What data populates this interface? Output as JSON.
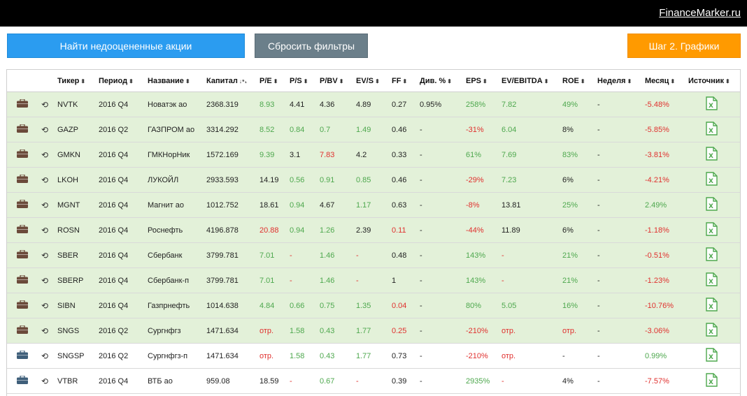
{
  "header": {
    "brand": "FinanceMarker.ru"
  },
  "buttons": {
    "find": "Найти недооцененные акции",
    "reset": "Сбросить фильтры",
    "step": "Шаг 2. Графики"
  },
  "colors": {
    "positive": "#4ea84e",
    "negative": "#e0302e",
    "highlight_row": "#e3f1d9",
    "accent_blue": "#2b9cf0",
    "accent_orange": "#ff9a00"
  },
  "table": {
    "columns": [
      {
        "key": "ticker",
        "label": "Тикер",
        "sort": "⬍"
      },
      {
        "key": "period",
        "label": "Период",
        "sort": "⬍"
      },
      {
        "key": "name",
        "label": "Название",
        "sort": "⬍"
      },
      {
        "key": "cap",
        "label": "Капитал",
        "sort": "↓⁹₁"
      },
      {
        "key": "pe",
        "label": "P/E",
        "sort": "⬍"
      },
      {
        "key": "ps",
        "label": "P/S",
        "sort": "⬍"
      },
      {
        "key": "pbv",
        "label": "P/BV",
        "sort": "⬍"
      },
      {
        "key": "evs",
        "label": "EV/S",
        "sort": "⬍"
      },
      {
        "key": "ff",
        "label": "FF",
        "sort": "⬍"
      },
      {
        "key": "div",
        "label": "Див. %",
        "sort": "⬍"
      },
      {
        "key": "eps",
        "label": "EPS",
        "sort": "⬍"
      },
      {
        "key": "evebitda",
        "label": "EV/EBITDA",
        "sort": "⬍"
      },
      {
        "key": "roe",
        "label": "ROE",
        "sort": "⬍"
      },
      {
        "key": "week",
        "label": "Неделя",
        "sort": "⬍"
      },
      {
        "key": "month",
        "label": "Месяц",
        "sort": "⬍"
      },
      {
        "key": "source",
        "label": "Источник",
        "sort": "⬍"
      }
    ],
    "rows": [
      {
        "hl": true,
        "dark": true,
        "ticker": "NVTK",
        "period": "2016 Q4",
        "name": "Новатэк ао",
        "cap": "2368.319",
        "pe": [
          "8.93",
          "pos"
        ],
        "ps": [
          "4.41",
          ""
        ],
        "pbv": [
          "4.36",
          ""
        ],
        "evs": [
          "4.89",
          ""
        ],
        "ff": [
          "0.27",
          ""
        ],
        "div": [
          "0.95%",
          ""
        ],
        "eps": [
          "258%",
          "pos"
        ],
        "evebitda": [
          "7.82",
          "pos"
        ],
        "roe": [
          "49%",
          "pos"
        ],
        "week": "-",
        "month": [
          "-5.48%",
          "neg"
        ]
      },
      {
        "hl": true,
        "dark": true,
        "ticker": "GAZP",
        "period": "2016 Q2",
        "name": "ГАЗПРОМ ао",
        "cap": "3314.292",
        "pe": [
          "8.52",
          "pos"
        ],
        "ps": [
          "0.84",
          "pos"
        ],
        "pbv": [
          "0.7",
          "pos"
        ],
        "evs": [
          "1.49",
          "pos"
        ],
        "ff": [
          "0.46",
          ""
        ],
        "div": [
          "-",
          ""
        ],
        "eps": [
          "-31%",
          "neg"
        ],
        "evebitda": [
          "6.04",
          "pos"
        ],
        "roe": [
          "8%",
          ""
        ],
        "week": "-",
        "month": [
          "-5.85%",
          "neg"
        ]
      },
      {
        "hl": true,
        "dark": true,
        "ticker": "GMKN",
        "period": "2016 Q4",
        "name": "ГМКНорНик",
        "cap": "1572.169",
        "pe": [
          "9.39",
          "pos"
        ],
        "ps": [
          "3.1",
          ""
        ],
        "pbv": [
          "7.83",
          "neg"
        ],
        "evs": [
          "4.2",
          ""
        ],
        "ff": [
          "0.33",
          ""
        ],
        "div": [
          "-",
          ""
        ],
        "eps": [
          "61%",
          "pos"
        ],
        "evebitda": [
          "7.69",
          "pos"
        ],
        "roe": [
          "83%",
          "pos"
        ],
        "week": "-",
        "month": [
          "-3.81%",
          "neg"
        ]
      },
      {
        "hl": true,
        "dark": true,
        "ticker": "LKOH",
        "period": "2016 Q4",
        "name": "ЛУКОЙЛ",
        "cap": "2933.593",
        "pe": [
          "14.19",
          ""
        ],
        "ps": [
          "0.56",
          "pos"
        ],
        "pbv": [
          "0.91",
          "pos"
        ],
        "evs": [
          "0.85",
          "pos"
        ],
        "ff": [
          "0.46",
          ""
        ],
        "div": [
          "-",
          ""
        ],
        "eps": [
          "-29%",
          "neg"
        ],
        "evebitda": [
          "7.23",
          "pos"
        ],
        "roe": [
          "6%",
          ""
        ],
        "week": "-",
        "month": [
          "-4.21%",
          "neg"
        ]
      },
      {
        "hl": true,
        "dark": true,
        "ticker": "MGNT",
        "period": "2016 Q4",
        "name": "Магнит ао",
        "cap": "1012.752",
        "pe": [
          "18.61",
          ""
        ],
        "ps": [
          "0.94",
          "pos"
        ],
        "pbv": [
          "4.67",
          ""
        ],
        "evs": [
          "1.17",
          "pos"
        ],
        "ff": [
          "0.63",
          ""
        ],
        "div": [
          "-",
          ""
        ],
        "eps": [
          "-8%",
          "neg"
        ],
        "evebitda": [
          "13.81",
          ""
        ],
        "roe": [
          "25%",
          "pos"
        ],
        "week": "-",
        "month": [
          "2.49%",
          "pos"
        ]
      },
      {
        "hl": true,
        "dark": true,
        "ticker": "ROSN",
        "period": "2016 Q4",
        "name": "Роснефть",
        "cap": "4196.878",
        "pe": [
          "20.88",
          "neg"
        ],
        "ps": [
          "0.94",
          "pos"
        ],
        "pbv": [
          "1.26",
          "pos"
        ],
        "evs": [
          "2.39",
          ""
        ],
        "ff": [
          "0.11",
          "neg"
        ],
        "div": [
          "-",
          ""
        ],
        "eps": [
          "-44%",
          "neg"
        ],
        "evebitda": [
          "11.89",
          ""
        ],
        "roe": [
          "6%",
          ""
        ],
        "week": "-",
        "month": [
          "-1.18%",
          "neg"
        ]
      },
      {
        "hl": true,
        "dark": true,
        "ticker": "SBER",
        "period": "2016 Q4",
        "name": "Сбербанк",
        "cap": "3799.781",
        "pe": [
          "7.01",
          "pos"
        ],
        "ps": [
          "-",
          "neg"
        ],
        "pbv": [
          "1.46",
          "pos"
        ],
        "evs": [
          "-",
          "neg"
        ],
        "ff": [
          "0.48",
          ""
        ],
        "div": [
          "-",
          ""
        ],
        "eps": [
          "143%",
          "pos"
        ],
        "evebitda": [
          "-",
          "neg"
        ],
        "roe": [
          "21%",
          "pos"
        ],
        "week": "-",
        "month": [
          "-0.51%",
          "neg"
        ]
      },
      {
        "hl": true,
        "dark": true,
        "ticker": "SBERP",
        "period": "2016 Q4",
        "name": "Сбербанк-п",
        "cap": "3799.781",
        "pe": [
          "7.01",
          "pos"
        ],
        "ps": [
          "-",
          "neg"
        ],
        "pbv": [
          "1.46",
          "pos"
        ],
        "evs": [
          "-",
          "neg"
        ],
        "ff": [
          "1",
          ""
        ],
        "div": [
          "-",
          ""
        ],
        "eps": [
          "143%",
          "pos"
        ],
        "evebitda": [
          "-",
          "neg"
        ],
        "roe": [
          "21%",
          "pos"
        ],
        "week": "-",
        "month": [
          "-1.23%",
          "neg"
        ]
      },
      {
        "hl": true,
        "dark": true,
        "ticker": "SIBN",
        "period": "2016 Q4",
        "name": "Газпрнефть",
        "cap": "1014.638",
        "pe": [
          "4.84",
          "pos"
        ],
        "ps": [
          "0.66",
          "pos"
        ],
        "pbv": [
          "0.75",
          "pos"
        ],
        "evs": [
          "1.35",
          "pos"
        ],
        "ff": [
          "0.04",
          "neg"
        ],
        "div": [
          "-",
          ""
        ],
        "eps": [
          "80%",
          "pos"
        ],
        "evebitda": [
          "5.05",
          "pos"
        ],
        "roe": [
          "16%",
          "pos"
        ],
        "week": "-",
        "month": [
          "-10.76%",
          "neg"
        ]
      },
      {
        "hl": true,
        "dark": true,
        "ticker": "SNGS",
        "period": "2016 Q2",
        "name": "Сургнфгз",
        "cap": "1471.634",
        "pe": [
          "отр.",
          "neg"
        ],
        "ps": [
          "1.58",
          "pos"
        ],
        "pbv": [
          "0.43",
          "pos"
        ],
        "evs": [
          "1.77",
          "pos"
        ],
        "ff": [
          "0.25",
          "neg"
        ],
        "div": [
          "-",
          ""
        ],
        "eps": [
          "-210%",
          "neg"
        ],
        "evebitda": [
          "отр.",
          "neg"
        ],
        "roe": [
          "отр.",
          "neg"
        ],
        "week": "-",
        "month": [
          "-3.06%",
          "neg"
        ]
      },
      {
        "hl": false,
        "dark": false,
        "ticker": "SNGSP",
        "period": "2016 Q2",
        "name": "Сургнфгз-п",
        "cap": "1471.634",
        "pe": [
          "отр.",
          "neg"
        ],
        "ps": [
          "1.58",
          "pos"
        ],
        "pbv": [
          "0.43",
          "pos"
        ],
        "evs": [
          "1.77",
          "pos"
        ],
        "ff": [
          "0.73",
          ""
        ],
        "div": [
          "-",
          ""
        ],
        "eps": [
          "-210%",
          "neg"
        ],
        "evebitda": [
          "отр.",
          "neg"
        ],
        "roe": [
          "-",
          ""
        ],
        "week": "-",
        "month": [
          "0.99%",
          "pos"
        ]
      },
      {
        "hl": false,
        "dark": false,
        "ticker": "VTBR",
        "period": "2016 Q4",
        "name": "ВТБ ао",
        "cap": "959.08",
        "pe": [
          "18.59",
          ""
        ],
        "ps": [
          "-",
          "neg"
        ],
        "pbv": [
          "0.67",
          "pos"
        ],
        "evs": [
          "-",
          "neg"
        ],
        "ff": [
          "0.39",
          ""
        ],
        "div": [
          "-",
          ""
        ],
        "eps": [
          "2935%",
          "pos"
        ],
        "evebitda": [
          "-",
          "neg"
        ],
        "roe": [
          "4%",
          ""
        ],
        "week": "-",
        "month": [
          "-7.57%",
          "neg"
        ]
      }
    ]
  }
}
